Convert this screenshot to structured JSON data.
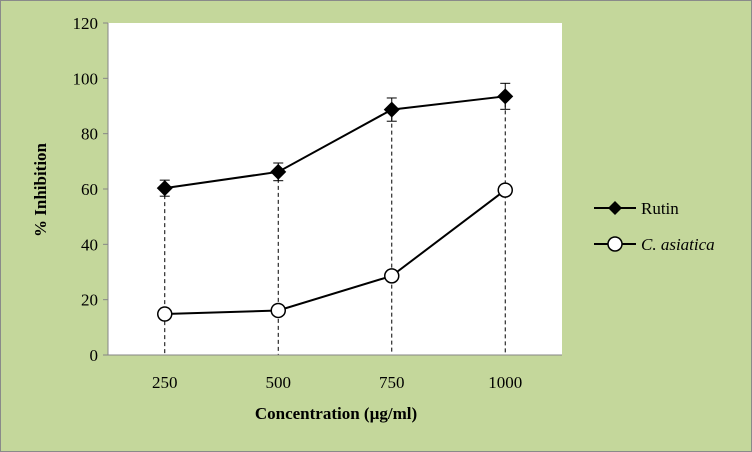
{
  "chart_data": {
    "type": "line",
    "title": "",
    "xlabel": "Concentration (µg/ml)",
    "ylabel": "% Inhibition",
    "categories": [
      "250",
      "500",
      "750",
      "1000"
    ],
    "ylim": [
      0,
      120
    ],
    "yticks": [
      "0",
      "20",
      "40",
      "60",
      "80",
      "100",
      "120"
    ],
    "grid": false,
    "legend_position": "right",
    "series": [
      {
        "name": "Rutin",
        "marker": "diamond-filled",
        "values": [
          60.3,
          66.2,
          88.7,
          93.5
        ],
        "errors": [
          2.9,
          3.2,
          4.2,
          4.7
        ]
      },
      {
        "name": "C. asiatica",
        "marker": "circle-open",
        "values": [
          14.8,
          16.1,
          28.6,
          59.6
        ],
        "errors": [
          0.8,
          0.8,
          0.8,
          1.0
        ]
      }
    ],
    "colors": {
      "background": "#c4d79b",
      "plot": "#ffffff",
      "line": "#000000"
    }
  }
}
